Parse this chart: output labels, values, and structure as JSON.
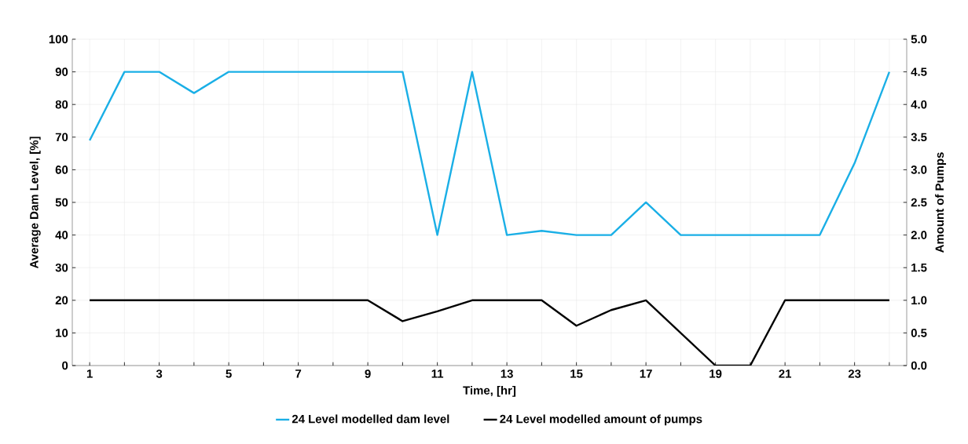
{
  "chart_data": {
    "type": "line",
    "xlabel": "Time, [hr]",
    "ylabel": "Average Dam Level, [%]",
    "y2label": "Amount of Pumps",
    "x": [
      1,
      2,
      3,
      4,
      5,
      6,
      7,
      8,
      9,
      10,
      11,
      12,
      13,
      14,
      15,
      16,
      17,
      18,
      19,
      20,
      21,
      22,
      23,
      24
    ],
    "series": [
      {
        "name": "24 Level modelled dam level",
        "color": "#1aafe6",
        "values": [
          69,
          90,
          90,
          83.5,
          90,
          90,
          90,
          90,
          90,
          90,
          40,
          90,
          40,
          41.3,
          40,
          40,
          50,
          40,
          40,
          40,
          40,
          40,
          62,
          90
        ]
      },
      {
        "name": "24 Level modelled amount of pumps",
        "color": "#000000",
        "axis": "y2",
        "values": [
          1,
          1,
          1,
          1,
          1,
          1,
          1,
          1,
          1,
          0.68,
          0.83,
          1,
          1,
          1,
          0.61,
          0.85,
          1,
          0.5,
          0,
          0,
          1,
          1,
          1,
          1
        ]
      }
    ],
    "xlim": [
      0.5,
      24.5
    ],
    "xticks": [
      1,
      {
        "value": 2,
        "label": null
      },
      3,
      {
        "value": 4,
        "label": null
      },
      5,
      {
        "value": 6,
        "label": null
      },
      7,
      {
        "value": 8,
        "label": null
      },
      9,
      {
        "value": 10,
        "label": null
      },
      11,
      {
        "value": 12,
        "label": null
      },
      13,
      {
        "value": 14,
        "label": null
      },
      15,
      {
        "value": 16,
        "label": null
      },
      17,
      {
        "value": 18,
        "label": null
      },
      19,
      {
        "value": 20,
        "label": null
      },
      21,
      {
        "value": 22,
        "label": null
      },
      23,
      {
        "value": 24,
        "label": null
      }
    ],
    "ylim": [
      0,
      100
    ],
    "yticks": [
      0,
      10,
      20,
      30,
      40,
      50,
      60,
      70,
      80,
      90,
      100
    ],
    "y2lim": [
      0,
      5
    ],
    "y2ticks": [
      {
        "value": 0,
        "label": "0.0"
      },
      {
        "value": 0.5,
        "label": "0.5"
      },
      {
        "value": 1,
        "label": "1.0"
      },
      {
        "value": 1.5,
        "label": "1.5"
      },
      {
        "value": 2,
        "label": "2.0"
      },
      {
        "value": 2.5,
        "label": "2.5"
      },
      {
        "value": 3,
        "label": "3.0"
      },
      {
        "value": 3.5,
        "label": "3.5"
      },
      {
        "value": 4,
        "label": "4.0"
      },
      {
        "value": 4.5,
        "label": "4.5"
      },
      {
        "value": 5,
        "label": "5.0"
      }
    ],
    "grid": true,
    "legend": "bottom",
    "marker": "none",
    "line_style": "solid"
  }
}
